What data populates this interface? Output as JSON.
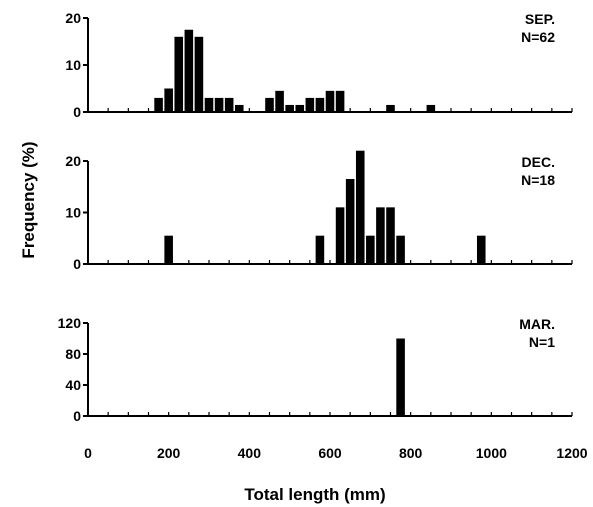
{
  "chart_data": [
    {
      "type": "bar",
      "label": "SEP.",
      "n_label": "N=62",
      "ylim": [
        0,
        20
      ],
      "yticks": [
        0,
        10,
        20
      ],
      "x": [
        175,
        200,
        225,
        250,
        275,
        300,
        325,
        350,
        375,
        400,
        425,
        450,
        475,
        500,
        525,
        550,
        575,
        600,
        625,
        650,
        675,
        700,
        725,
        750,
        775,
        800,
        825,
        850,
        875,
        900,
        925,
        950,
        975,
        1000,
        1025,
        1050,
        1075,
        1100
      ],
      "values": [
        3,
        5,
        16,
        17.5,
        16,
        3,
        3,
        3,
        1.5,
        0,
        0,
        3,
        4.5,
        1.5,
        1.5,
        3,
        3,
        4.5,
        4.5,
        0,
        0,
        0,
        0,
        1.5,
        0,
        0,
        0,
        1.5,
        0,
        0,
        0,
        0,
        0,
        0,
        0,
        0,
        0,
        0
      ]
    },
    {
      "type": "bar",
      "label": "DEC.",
      "n_label": "N=18",
      "ylim": [
        0,
        20
      ],
      "yticks": [
        0,
        10,
        20
      ],
      "x": [
        200,
        575,
        625,
        650,
        675,
        700,
        725,
        750,
        775,
        800,
        825,
        850,
        975
      ],
      "values": [
        5.5,
        5.5,
        11,
        16.5,
        22,
        5.5,
        11,
        11,
        5.5,
        0,
        0,
        0,
        5.5
      ]
    },
    {
      "type": "bar",
      "label": "MAR.",
      "n_label": "N=1",
      "ylim": [
        0,
        120
      ],
      "yticks": [
        0,
        40,
        80,
        120
      ],
      "x": [
        775
      ],
      "values": [
        100
      ]
    }
  ],
  "x_axis": {
    "range": [
      0,
      1200
    ],
    "tick_labels": [
      "0",
      "200",
      "400",
      "600",
      "800",
      "1000",
      "1200"
    ],
    "title": "Total length (mm)"
  },
  "y_axis": {
    "title": "Frequency (%)"
  }
}
